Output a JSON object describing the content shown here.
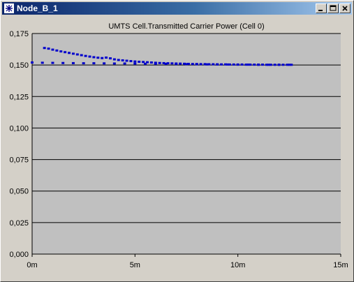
{
  "window": {
    "title": "Node_B_1",
    "controls": {
      "minimize": "minimize",
      "maximize": "maximize",
      "close": "close"
    }
  },
  "colors": {
    "plot_background": "#c0c0c0",
    "gridline": "#000000",
    "series": "#0000cc",
    "titlebar_start": "#0a246a",
    "titlebar_end": "#a6caf0"
  },
  "chart_data": {
    "type": "scatter",
    "title": "UMTS Cell.Transmitted Carrier Power (Cell 0)",
    "xlabel": "",
    "ylabel": "",
    "xlim": [
      0,
      15
    ],
    "ylim": [
      0,
      0.175
    ],
    "x_ticks": [
      0,
      5,
      10,
      15
    ],
    "x_tick_labels": [
      "0m",
      "5m",
      "10m",
      "15m"
    ],
    "y_ticks": [
      0,
      0.025,
      0.05,
      0.075,
      0.1,
      0.125,
      0.15,
      0.175
    ],
    "y_tick_labels": [
      "0,000",
      "0,025",
      "0,050",
      "0,075",
      "0,100",
      "0,125",
      "0,150",
      "0,175"
    ],
    "grid": "horizontal",
    "series": [
      {
        "x": [
          0.6,
          0.8,
          1.0,
          1.2,
          1.4,
          1.6,
          1.8,
          2.0,
          2.2,
          2.4,
          2.6,
          2.8,
          3.0,
          3.2,
          3.4,
          3.6,
          3.8,
          4.0,
          4.2,
          4.4,
          4.6,
          4.8,
          5.0,
          5.2,
          5.4,
          5.6,
          5.8,
          6.0,
          6.2,
          6.4,
          6.6,
          6.8,
          7.0,
          7.2,
          7.4,
          7.6,
          7.8,
          8.0,
          8.2,
          8.4,
          8.6,
          8.8,
          9.0,
          9.2,
          9.4,
          9.6,
          9.8,
          10.0,
          10.2,
          10.4,
          10.6,
          10.8,
          11.0,
          11.2,
          11.4,
          11.6,
          11.8,
          12.0,
          12.2,
          12.4,
          12.6
        ],
        "y": [
          0.1635,
          0.163,
          0.1622,
          0.1615,
          0.1608,
          0.1602,
          0.1596,
          0.159,
          0.1584,
          0.1578,
          0.1572,
          0.1567,
          0.1562,
          0.1558,
          0.1555,
          0.1559,
          0.1553,
          0.1545,
          0.154,
          0.1537,
          0.1534,
          0.1531,
          0.1528,
          0.1526,
          0.1524,
          0.1522,
          0.152,
          0.1518,
          0.1516,
          0.1515,
          0.1514,
          0.1513,
          0.1512,
          0.1511,
          0.151,
          0.1509,
          0.1508,
          0.1508,
          0.1507,
          0.1507,
          0.1506,
          0.1506,
          0.1505,
          0.1505,
          0.1505,
          0.1504,
          0.1504,
          0.1504,
          0.1504,
          0.1503,
          0.1503,
          0.1503,
          0.1503,
          0.1503,
          0.1502,
          0.1502,
          0.1502,
          0.1502,
          0.1502,
          0.1502,
          0.1502
        ]
      },
      {
        "x": [
          0.0,
          0.5,
          1.0,
          1.5,
          2.0,
          2.5,
          3.0,
          3.5,
          4.0,
          4.5,
          5.0,
          5.5,
          6.0,
          6.5,
          7.0,
          7.5,
          8.0,
          8.5,
          9.0,
          9.5,
          10.0,
          10.5,
          11.0,
          11.5,
          12.0,
          12.5
        ],
        "y": [
          0.152,
          0.1518,
          0.1517,
          0.1516,
          0.1515,
          0.1514,
          0.1514,
          0.1513,
          0.1512,
          0.1512,
          0.1511,
          0.151,
          0.151,
          0.1509,
          0.1508,
          0.1507,
          0.1506,
          0.1505,
          0.1505,
          0.1504,
          0.1503,
          0.1503,
          0.1502,
          0.1502,
          0.1502,
          0.1502
        ]
      }
    ]
  }
}
